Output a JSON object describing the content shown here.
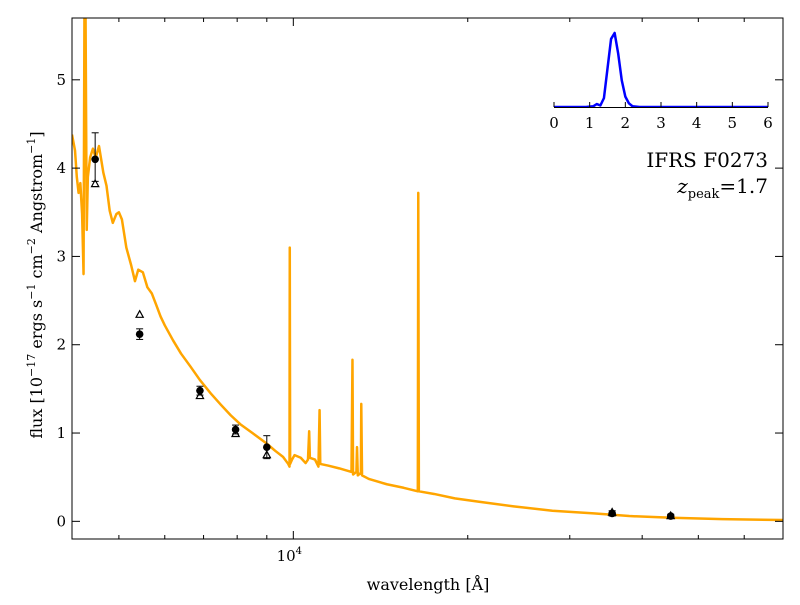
{
  "chart_data": {
    "type": "line",
    "xlabel": "wavelength [Å]",
    "ylabel_parts": {
      "prefix": "flux [10",
      "exp1": "−17",
      "mid1": " ergs s",
      "exp2": "−1",
      "mid2": " cm",
      "exp3": "−2",
      "mid3": " Angstrom",
      "exp4": "−1",
      "suffix": "]"
    },
    "xscale": "log",
    "xlim": [
      4150,
      70000
    ],
    "ylim": [
      -0.2,
      5.7
    ],
    "xtick": {
      "value": 10000,
      "label_base": "10",
      "label_exp": "4"
    },
    "yticks": [
      0,
      1,
      2,
      3,
      4,
      5
    ],
    "ytick_labels": [
      "0",
      "1",
      "2",
      "3",
      "4",
      "5"
    ],
    "grid": false,
    "annotation": {
      "object_name": "IFRS F0273",
      "z_symbol": "z",
      "z_subscript": "peak",
      "z_value": "=1.7"
    },
    "colors": {
      "sed": "#ffa500",
      "inset_curve": "#0000ff",
      "points": "#000000"
    },
    "series": [
      {
        "kind": "model-sed",
        "points": [
          [
            4150,
            4.38
          ],
          [
            4200,
            4.2
          ],
          [
            4230,
            3.9
          ],
          [
            4260,
            3.72
          ],
          [
            4290,
            3.83
          ],
          [
            4320,
            3.48
          ],
          [
            4345,
            2.8
          ],
          [
            4360,
            5.7
          ],
          [
            4380,
            5.7
          ],
          [
            4400,
            3.3
          ],
          [
            4420,
            3.9
          ],
          [
            4460,
            4.12
          ],
          [
            4510,
            4.22
          ],
          [
            4560,
            4.12
          ],
          [
            4620,
            4.25
          ],
          [
            4700,
            3.95
          ],
          [
            4760,
            3.8
          ],
          [
            4820,
            3.52
          ],
          [
            4880,
            3.38
          ],
          [
            4950,
            3.48
          ],
          [
            5000,
            3.5
          ],
          [
            5060,
            3.42
          ],
          [
            5150,
            3.1
          ],
          [
            5250,
            2.9
          ],
          [
            5330,
            2.72
          ],
          [
            5400,
            2.85
          ],
          [
            5500,
            2.82
          ],
          [
            5600,
            2.65
          ],
          [
            5700,
            2.58
          ],
          [
            5800,
            2.45
          ],
          [
            5900,
            2.32
          ],
          [
            6000,
            2.22
          ],
          [
            6200,
            2.05
          ],
          [
            6400,
            1.9
          ],
          [
            6650,
            1.75
          ],
          [
            6900,
            1.6
          ],
          [
            7200,
            1.45
          ],
          [
            7500,
            1.32
          ],
          [
            7800,
            1.2
          ],
          [
            8100,
            1.1
          ],
          [
            8500,
            1.0
          ],
          [
            9000,
            0.88
          ],
          [
            9300,
            0.8
          ],
          [
            9600,
            0.73
          ],
          [
            9800,
            0.65
          ],
          [
            9850,
            0.62
          ],
          [
            9860,
            3.1
          ],
          [
            9875,
            0.65
          ],
          [
            9950,
            0.7
          ],
          [
            10050,
            0.75
          ],
          [
            10300,
            0.72
          ],
          [
            10500,
            0.66
          ],
          [
            10600,
            0.7
          ],
          [
            10650,
            1.02
          ],
          [
            10680,
            0.72
          ],
          [
            10900,
            0.7
          ],
          [
            11050,
            0.62
          ],
          [
            11100,
            1.26
          ],
          [
            11130,
            0.65
          ],
          [
            11500,
            0.63
          ],
          [
            12000,
            0.6
          ],
          [
            12600,
            0.56
          ],
          [
            12650,
            1.83
          ],
          [
            12680,
            0.53
          ],
          [
            12850,
            0.56
          ],
          [
            12880,
            0.84
          ],
          [
            12920,
            0.52
          ],
          [
            13080,
            0.55
          ],
          [
            13100,
            1.33
          ],
          [
            13140,
            0.52
          ],
          [
            13500,
            0.48
          ],
          [
            14500,
            0.42
          ],
          [
            15500,
            0.38
          ],
          [
            16400,
            0.34
          ],
          [
            16430,
            3.72
          ],
          [
            16470,
            0.34
          ],
          [
            17500,
            0.31
          ],
          [
            19000,
            0.26
          ],
          [
            21000,
            0.22
          ],
          [
            24000,
            0.17
          ],
          [
            28000,
            0.12
          ],
          [
            33000,
            0.09
          ],
          [
            38000,
            0.06
          ],
          [
            45000,
            0.04
          ],
          [
            55000,
            0.025
          ],
          [
            70000,
            0.015
          ]
        ]
      },
      {
        "kind": "observed-circles",
        "points": [
          {
            "x": 4550,
            "y": 4.1,
            "err_up": 0.3,
            "err_down": 0.25
          },
          {
            "x": 5430,
            "y": 2.12,
            "err_up": 0.06,
            "err_down": 0.06
          },
          {
            "x": 6900,
            "y": 1.48,
            "err_up": 0.05,
            "err_down": 0.05
          },
          {
            "x": 7950,
            "y": 1.04,
            "err_up": 0.05,
            "err_down": 0.05
          },
          {
            "x": 9000,
            "y": 0.84,
            "err_up": 0.13,
            "err_down": 0.13
          },
          {
            "x": 35500,
            "y": 0.09,
            "err_up": 0.03,
            "err_down": 0.03
          },
          {
            "x": 44800,
            "y": 0.06,
            "err_up": 0.02,
            "err_down": 0.02
          }
        ]
      },
      {
        "kind": "model-triangles",
        "points": [
          [
            4550,
            3.82
          ],
          [
            5430,
            2.34
          ],
          [
            6900,
            1.42
          ],
          [
            7950,
            0.99
          ],
          [
            9000,
            0.75
          ],
          [
            35500,
            0.1
          ],
          [
            44800,
            0.06
          ]
        ]
      }
    ],
    "inset": {
      "type": "line",
      "xlim": [
        0,
        6
      ],
      "ylim": [
        0,
        5
      ],
      "xticks": [
        0,
        1,
        2,
        3,
        4,
        5,
        6
      ],
      "xtick_labels": [
        "0",
        "1",
        "2",
        "3",
        "4",
        "5",
        "6"
      ],
      "curve": [
        [
          0,
          0
        ],
        [
          0.9,
          0
        ],
        [
          1.1,
          0.05
        ],
        [
          1.2,
          0.2
        ],
        [
          1.3,
          0.1
        ],
        [
          1.4,
          0.6
        ],
        [
          1.5,
          2.6
        ],
        [
          1.6,
          4.6
        ],
        [
          1.7,
          5.0
        ],
        [
          1.8,
          3.6
        ],
        [
          1.9,
          1.8
        ],
        [
          2.0,
          0.7
        ],
        [
          2.1,
          0.25
        ],
        [
          2.2,
          0.05
        ],
        [
          2.4,
          0
        ],
        [
          6,
          0
        ]
      ]
    }
  }
}
